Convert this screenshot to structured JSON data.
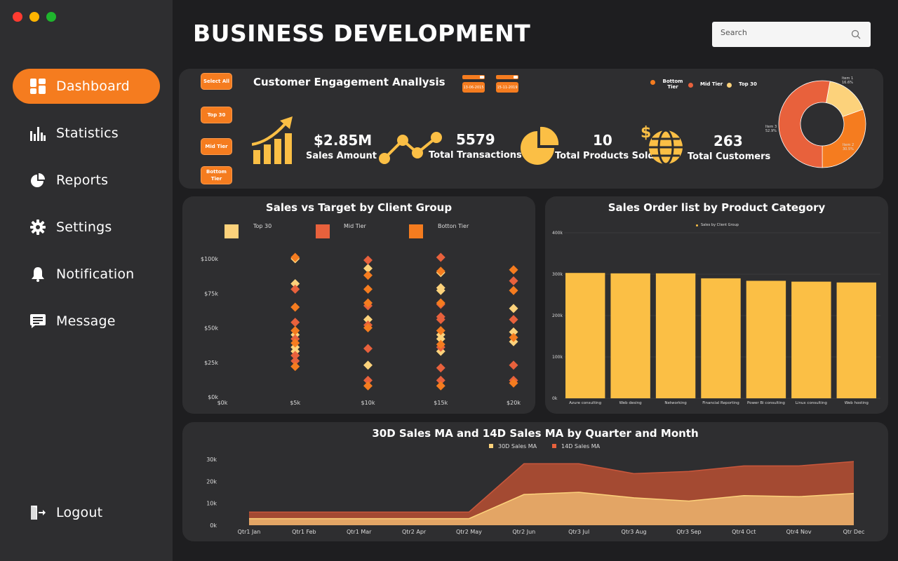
{
  "window": {
    "controls": [
      "#ff3b30",
      "#ffb400",
      "#1fb52d"
    ]
  },
  "header": {
    "title": "BUSINESS DEVELOPMENT",
    "search_placeholder": "Search"
  },
  "sidebar": {
    "items": [
      {
        "label": "Dashboard",
        "icon": "dashboard-icon",
        "active": true
      },
      {
        "label": "Statistics",
        "icon": "bar-chart-icon"
      },
      {
        "label": "Reports",
        "icon": "pie-chart-icon"
      },
      {
        "label": "Settings",
        "icon": "gear-icon"
      },
      {
        "label": "Notification",
        "icon": "bell-icon"
      },
      {
        "label": "Message",
        "icon": "message-icon"
      }
    ],
    "logout": {
      "label": "Logout",
      "icon": "logout-icon"
    }
  },
  "engagement": {
    "title": "Customer Engagement Anallysis",
    "filters": [
      "Select All",
      "Top 30",
      "Mid Tier",
      "Bottom Tier"
    ],
    "dates": [
      "13-06-2015",
      "15-11-2019"
    ],
    "kpis": [
      {
        "value": "$2.85M",
        "label": "Sales Amount"
      },
      {
        "value": "5579",
        "label": "Total Transactions"
      },
      {
        "value": "10",
        "label": "Total Products Sold"
      },
      {
        "value": "263",
        "label": "Total Customers"
      }
    ],
    "legend": [
      "Bottom Tier",
      "Mid Tier",
      "Top 30"
    ],
    "donut_labels": [
      {
        "name": "Item 1",
        "pct": "16.6%"
      },
      {
        "name": "Item 2",
        "pct": "30.5%"
      },
      {
        "name": "Item 3",
        "pct": "52.9%"
      }
    ]
  },
  "colors": {
    "accent": "#f57c1f",
    "top30": "#fcd27b",
    "mid": "#e8613c",
    "bottom": "#f57c1f",
    "bar": "#fbbf45",
    "panel": "#2e2e30"
  },
  "scatter": {
    "title": "Sales vs Target by Client Group",
    "legend": [
      "Top 30",
      "Mid Tier",
      "Botton Tier"
    ]
  },
  "bars": {
    "title": "Sales Order list by Product Category",
    "legend": "Sales by Client Group"
  },
  "area": {
    "title": "30D Sales MA and 14D Sales MA by Quarter and Month",
    "legend": [
      "30D Sales MA",
      "14D Sales MA"
    ]
  },
  "chart_data": [
    {
      "type": "pie",
      "title": "",
      "categories": [
        "Item 1",
        "Item 2",
        "Item 3"
      ],
      "values": [
        16.6,
        30.5,
        52.9
      ]
    },
    {
      "type": "scatter",
      "title": "Sales vs Target by Client Group",
      "x_ticks": [
        "$0k",
        "$5k",
        "$10k",
        "$15k",
        "$20k"
      ],
      "y_ticks": [
        "$0k",
        "$25k",
        "$50k",
        "$75k",
        "$100k"
      ],
      "xlim": [
        0,
        20
      ],
      "ylim": [
        0,
        100
      ],
      "series": [
        {
          "name": "Top 30",
          "points": [
            [
              5,
              100
            ],
            [
              5,
              82
            ],
            [
              5,
              45
            ],
            [
              5,
              36
            ],
            [
              5,
              33
            ],
            [
              10,
              93
            ],
            [
              10,
              56
            ],
            [
              10,
              23
            ],
            [
              15,
              90
            ],
            [
              15,
              79
            ],
            [
              15,
              77
            ],
            [
              15,
              45
            ],
            [
              15,
              42
            ],
            [
              15,
              33
            ],
            [
              20,
              64
            ],
            [
              20,
              47
            ],
            [
              20,
              40
            ]
          ]
        },
        {
          "name": "Mid Tier",
          "points": [
            [
              5,
              78
            ],
            [
              5,
              54
            ],
            [
              5,
              42
            ],
            [
              5,
              30
            ],
            [
              5,
              26
            ],
            [
              10,
              99
            ],
            [
              10,
              66
            ],
            [
              10,
              52
            ],
            [
              10,
              35
            ],
            [
              10,
              12
            ],
            [
              15,
              101
            ],
            [
              15,
              67
            ],
            [
              15,
              58
            ],
            [
              15,
              56
            ],
            [
              15,
              36
            ],
            [
              15,
              21
            ],
            [
              15,
              12
            ],
            [
              20,
              84
            ],
            [
              20,
              56
            ],
            [
              20,
              23
            ],
            [
              20,
              12
            ]
          ]
        },
        {
          "name": "Botton Tier",
          "points": [
            [
              5,
              101
            ],
            [
              5,
              65
            ],
            [
              5,
              48
            ],
            [
              5,
              39
            ],
            [
              5,
              22
            ],
            [
              10,
              88
            ],
            [
              10,
              78
            ],
            [
              10,
              68
            ],
            [
              10,
              50
            ],
            [
              10,
              8
            ],
            [
              15,
              91
            ],
            [
              15,
              68
            ],
            [
              15,
              48
            ],
            [
              15,
              38
            ],
            [
              15,
              8
            ],
            [
              20,
              92
            ],
            [
              20,
              77
            ],
            [
              20,
              43
            ],
            [
              20,
              10
            ]
          ]
        }
      ]
    },
    {
      "type": "bar",
      "title": "Sales Order list by Product Category",
      "categories": [
        "Azure consulting",
        "Web desing",
        "Networking",
        "Financial Reporting",
        "Power Bi consulting",
        "Linux consulting",
        "Web hosting"
      ],
      "series": [
        {
          "name": "Sales by Client Group",
          "values": [
            303000,
            302000,
            302000,
            290000,
            284000,
            282000,
            280000
          ]
        }
      ],
      "y_ticks": [
        "0k",
        "100k",
        "200k",
        "300k",
        "400k"
      ],
      "ylim": [
        0,
        400000
      ]
    },
    {
      "type": "area",
      "title": "30D Sales MA and 14D Sales MA by Quarter and Month",
      "categories": [
        "Qtr1 Jan",
        "Qtr1 Feb",
        "Qtr1 Mar",
        "Qtr2 Apr",
        "Qtr2 May",
        "Qtr2 Jun",
        "Qtr3 Jul",
        "Qtr3 Aug",
        "Qtr3 Sep",
        "Qtr4 Oct",
        "Qtr4 Nov",
        "Qtr Dec"
      ],
      "y_ticks": [
        "0k",
        "10k",
        "20k",
        "30k"
      ],
      "ylim": [
        0,
        30000
      ],
      "series": [
        {
          "name": "30D Sales MA",
          "values": [
            3000,
            3000,
            3000,
            3000,
            3000,
            14000,
            15000,
            12500,
            11000,
            13500,
            13000,
            14500
          ]
        },
        {
          "name": "14D Sales MA",
          "values": [
            6000,
            6000,
            6000,
            6000,
            6000,
            28000,
            28000,
            23500,
            24500,
            27000,
            27000,
            29000
          ]
        }
      ]
    }
  ]
}
